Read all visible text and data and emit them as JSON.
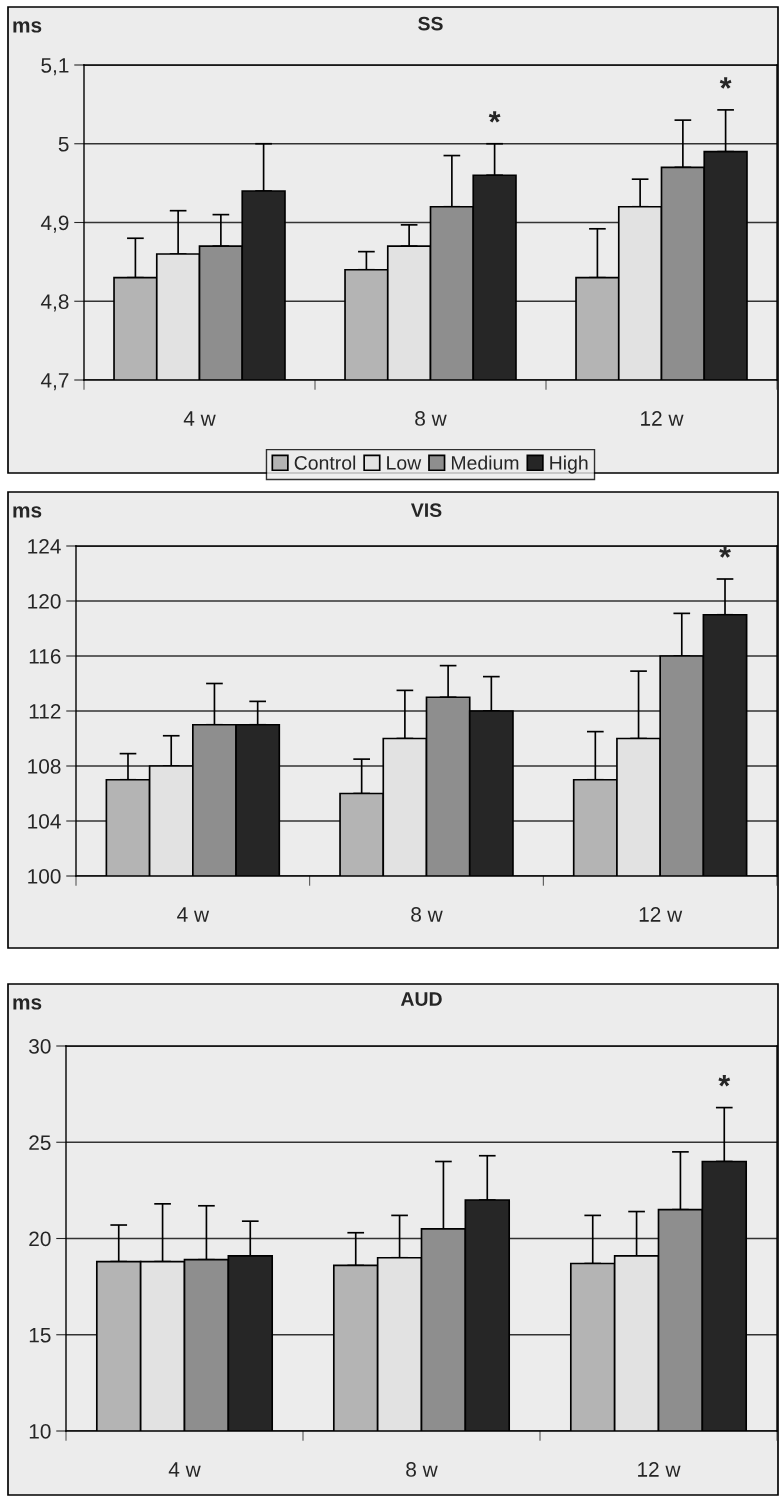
{
  "chart_data": [
    {
      "type": "bar",
      "title": "SS",
      "ylabel": "ms",
      "categories": [
        "4 w",
        "8 w",
        "12 w"
      ],
      "ylim": [
        4.7,
        5.1
      ],
      "yticks": [
        {
          "value": 4.7,
          "label": "4,7"
        },
        {
          "value": 4.8,
          "label": "4,8"
        },
        {
          "value": 4.9,
          "label": "4,9"
        },
        {
          "value": 5.0,
          "label": "5"
        },
        {
          "value": 5.1,
          "label": "5,1"
        }
      ],
      "grid": "y",
      "legend": "bottom",
      "series": [
        {
          "name": "Control",
          "color": "#b4b4b4",
          "values": [
            4.83,
            4.84,
            4.83
          ],
          "errors": [
            [
              4.83,
              4.88
            ],
            [
              4.84,
              4.863
            ],
            [
              4.83,
              4.892
            ]
          ]
        },
        {
          "name": "Low",
          "color": "#e2e2e2",
          "values": [
            4.86,
            4.87,
            4.92
          ],
          "errors": [
            [
              4.86,
              4.915
            ],
            [
              4.87,
              4.897
            ],
            [
              4.92,
              4.955
            ]
          ]
        },
        {
          "name": "Medium",
          "color": "#8e8e8e",
          "values": [
            4.87,
            4.92,
            4.97
          ],
          "errors": [
            [
              4.87,
              4.91
            ],
            [
              4.92,
              4.985
            ],
            [
              4.97,
              5.03
            ]
          ]
        },
        {
          "name": "High",
          "color": "#262626",
          "values": [
            4.94,
            4.96,
            4.99
          ],
          "errors": [
            [
              4.94,
              5.0
            ],
            [
              4.96,
              5.0
            ],
            [
              4.99,
              5.043
            ]
          ]
        }
      ],
      "annotations": [
        "*",
        "*"
      ]
    },
    {
      "type": "bar",
      "title": "VIS",
      "ylabel": "ms",
      "categories": [
        "4 w",
        "8 w",
        "12 w"
      ],
      "ylim": [
        100,
        124
      ],
      "yticks": [
        100,
        104,
        108,
        112,
        116,
        120,
        124
      ],
      "grid": "y",
      "series": [
        {
          "color": "#b4b4b4",
          "values": [
            107,
            106,
            107
          ],
          "errors": [
            [
              107,
              108.9
            ],
            [
              106,
              108.5
            ],
            [
              107,
              110.5
            ]
          ]
        },
        {
          "color": "#e2e2e2",
          "values": [
            108,
            110,
            110
          ],
          "errors": [
            [
              108,
              110.2
            ],
            [
              110,
              113.5
            ],
            [
              110,
              114.9
            ]
          ]
        },
        {
          "color": "#8e8e8e",
          "values": [
            111,
            113,
            116
          ],
          "errors": [
            [
              111,
              114.0
            ],
            [
              113,
              115.3
            ],
            [
              116,
              119.1
            ]
          ]
        },
        {
          "color": "#262626",
          "values": [
            111,
            112,
            119
          ],
          "errors": [
            [
              111,
              112.7
            ],
            [
              112,
              114.5
            ],
            [
              119,
              121.6
            ]
          ]
        }
      ],
      "annotations": [
        "*"
      ]
    },
    {
      "type": "bar",
      "title": "AUD",
      "ylabel": "ms",
      "categories": [
        "4 w",
        "8 w",
        "12 w"
      ],
      "ylim": [
        10,
        30
      ],
      "yticks": [
        10,
        15,
        20,
        25,
        30
      ],
      "grid": "y",
      "series": [
        {
          "color": "#b4b4b4",
          "values": [
            18.8,
            18.6,
            18.7
          ],
          "errors": [
            [
              18.8,
              20.7
            ],
            [
              18.6,
              20.3
            ],
            [
              18.7,
              21.2
            ]
          ]
        },
        {
          "color": "#e2e2e2",
          "values": [
            18.8,
            19.0,
            19.1
          ],
          "errors": [
            [
              18.8,
              21.8
            ],
            [
              19.0,
              21.2
            ],
            [
              19.1,
              21.4
            ]
          ]
        },
        {
          "color": "#8e8e8e",
          "values": [
            18.9,
            20.5,
            21.5
          ],
          "errors": [
            [
              18.9,
              21.7
            ],
            [
              20.5,
              24.0
            ],
            [
              21.5,
              24.5
            ]
          ]
        },
        {
          "color": "#262626",
          "values": [
            19.1,
            22.0,
            24.0
          ],
          "errors": [
            [
              19.1,
              20.9
            ],
            [
              22.0,
              24.3
            ],
            [
              24.0,
              26.8
            ]
          ]
        }
      ],
      "annotations": [
        "*"
      ]
    }
  ]
}
